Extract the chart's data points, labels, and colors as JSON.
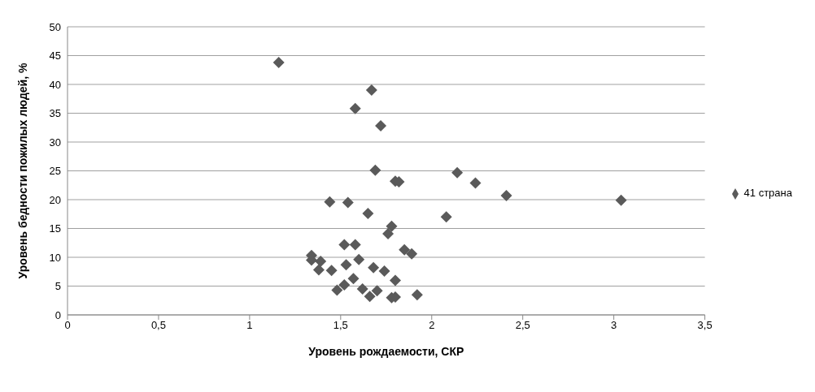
{
  "chart_data": {
    "type": "scatter",
    "xlabel": "Уровень рождаемости, СКР",
    "ylabel": "Уровень бедности пожилых людей, %",
    "xlim": [
      0,
      3.5
    ],
    "xticks": [
      0,
      {
        "value": 0.5,
        "label": "0,5"
      },
      1,
      {
        "value": 1.5,
        "label": "1,5"
      },
      2,
      {
        "value": 2.5,
        "label": "2,5"
      },
      3,
      {
        "value": 3.5,
        "label": "3,5"
      }
    ],
    "ylim": [
      0,
      50
    ],
    "yticks": [
      0,
      5,
      10,
      15,
      20,
      25,
      30,
      35,
      40,
      45,
      50
    ],
    "grid": "y",
    "legend": "right",
    "marker": "diamond",
    "series": [
      {
        "name": "41 страна",
        "color": "#5a5a5a",
        "x": [
          1.16,
          1.67,
          1.58,
          1.72,
          1.69,
          2.14,
          2.24,
          2.41,
          3.04,
          1.8,
          1.82,
          1.44,
          1.54,
          1.65,
          2.08,
          1.78,
          1.76,
          1.52,
          1.58,
          1.34,
          1.34,
          1.39,
          1.6,
          1.85,
          1.89,
          1.38,
          1.45,
          1.53,
          1.68,
          1.74,
          1.8,
          1.57,
          1.52,
          1.48,
          1.62,
          1.7,
          1.66,
          1.78,
          1.8,
          1.92
        ],
        "values": [
          43.8,
          39.0,
          35.8,
          32.8,
          25.1,
          24.7,
          22.9,
          20.7,
          19.9,
          23.2,
          23.1,
          19.6,
          19.5,
          17.6,
          17.0,
          15.4,
          14.1,
          12.2,
          12.2,
          10.3,
          9.5,
          9.3,
          9.6,
          11.3,
          10.6,
          7.8,
          7.7,
          8.7,
          8.2,
          7.6,
          6.0,
          6.3,
          5.2,
          4.3,
          4.5,
          4.2,
          3.2,
          3.0,
          3.1,
          3.5
        ]
      }
    ]
  }
}
